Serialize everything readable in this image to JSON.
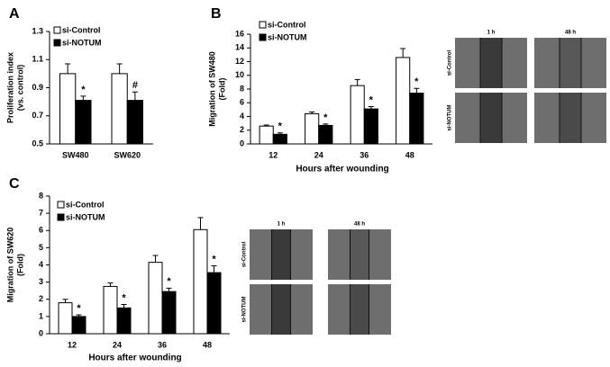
{
  "chart_data": [
    {
      "type": "bar",
      "panel_label": "A",
      "y_label": [
        "Proliferation index",
        "(vs. control)"
      ],
      "categories": [
        "SW480",
        "SW620"
      ],
      "series": [
        {
          "name": "si-Control",
          "color": "#ffffff",
          "values": [
            1.0,
            1.0
          ],
          "errors": [
            0.07,
            0.07
          ],
          "annotations": [
            null,
            null
          ]
        },
        {
          "name": "si-NOTUM",
          "color": "#000000",
          "values": [
            0.81,
            0.81
          ],
          "errors": [
            0.03,
            0.06
          ],
          "annotations": [
            "*",
            "#"
          ]
        }
      ],
      "ylim": [
        0.5,
        1.3
      ],
      "yticks": [
        0.5,
        0.7,
        0.9,
        1.1,
        1.3
      ]
    },
    {
      "type": "bar",
      "panel_label": "B",
      "y_label": [
        "Migration of SW480",
        "(Fold)"
      ],
      "x_label": "Hours after wounding",
      "categories": [
        "12",
        "24",
        "36",
        "48"
      ],
      "series": [
        {
          "name": "si-Control",
          "color": "#ffffff",
          "values": [
            2.6,
            4.4,
            8.5,
            12.6
          ],
          "errors": [
            0.15,
            0.25,
            0.9,
            1.3
          ],
          "annotations": [
            null,
            null,
            null,
            null
          ]
        },
        {
          "name": "si-NOTUM",
          "color": "#000000",
          "values": [
            1.4,
            2.7,
            5.1,
            7.4
          ],
          "errors": [
            0.2,
            0.2,
            0.35,
            0.7
          ],
          "annotations": [
            "*",
            "*",
            "*",
            "*"
          ]
        }
      ],
      "ylim": [
        0,
        16
      ],
      "yticks": [
        0,
        2,
        4,
        6,
        8,
        10,
        12,
        14,
        16
      ],
      "image_panel": {
        "columns": [
          "1 h",
          "48 h"
        ],
        "rows": [
          "si-Control",
          "si-NOTUM"
        ]
      }
    },
    {
      "type": "bar",
      "panel_label": "C",
      "y_label": [
        "Migration of SW620",
        "(Fold)"
      ],
      "x_label": "Hours after wounding",
      "categories": [
        "12",
        "24",
        "36",
        "48"
      ],
      "series": [
        {
          "name": "si-Control",
          "color": "#ffffff",
          "values": [
            1.8,
            2.75,
            4.15,
            6.05
          ],
          "errors": [
            0.2,
            0.2,
            0.4,
            0.7
          ],
          "annotations": [
            null,
            null,
            null,
            null
          ]
        },
        {
          "name": "si-NOTUM",
          "color": "#000000",
          "values": [
            1.0,
            1.5,
            2.45,
            3.55
          ],
          "errors": [
            0.1,
            0.2,
            0.2,
            0.4
          ],
          "annotations": [
            "*",
            "*",
            "*",
            "*"
          ]
        }
      ],
      "ylim": [
        0,
        8
      ],
      "yticks": [
        0,
        1,
        2,
        3,
        4,
        5,
        6,
        7,
        8
      ],
      "image_panel": {
        "columns": [
          "1 h",
          "48 h"
        ],
        "rows": [
          "si-Control",
          "si-NOTUM"
        ]
      }
    }
  ]
}
